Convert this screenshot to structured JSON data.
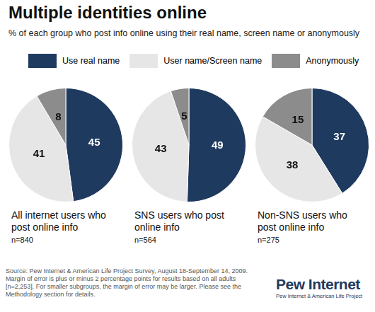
{
  "title": "Multiple identities online",
  "subtitle": "% of each group who post info online using their real name, screen name or anonymously",
  "chart_data": [
    {
      "type": "pie",
      "title": "All internet users who post online info",
      "subtitle": "n=840",
      "categories": [
        "Use real name",
        "User name/Screen name",
        "Anonymously"
      ],
      "values": [
        45,
        41,
        8
      ],
      "colors": [
        "#1f3a5f",
        "#e6e6e6",
        "#8c8c8c"
      ],
      "data_labels": true,
      "legend": "top"
    },
    {
      "type": "pie",
      "title": "SNS users who post online info",
      "subtitle": "n=564",
      "categories": [
        "Use real name",
        "User name/Screen name",
        "Anonymously"
      ],
      "values": [
        49,
        43,
        5
      ],
      "colors": [
        "#1f3a5f",
        "#e6e6e6",
        "#8c8c8c"
      ],
      "data_labels": true
    },
    {
      "type": "pie",
      "title": "Non-SNS users who post online info",
      "subtitle": "n=275",
      "categories": [
        "Use real name",
        "User name/Screen name",
        "Anonymously"
      ],
      "values": [
        37,
        38,
        15
      ],
      "colors": [
        "#1f3a5f",
        "#e6e6e6",
        "#8c8c8c"
      ],
      "data_labels": true
    }
  ],
  "source": "Source: Pew Internet & American Life Project Survey, August 18-September 14, 2009. Margin of error is plus or minus 2 percentage points for results based on all adults [n=2,253]. For smaller subgroups, the margin of error may be larger. Please see the Methodology section for details.",
  "logo": {
    "name": "Pew Internet",
    "full": "Pew Internet & American Life Project"
  }
}
